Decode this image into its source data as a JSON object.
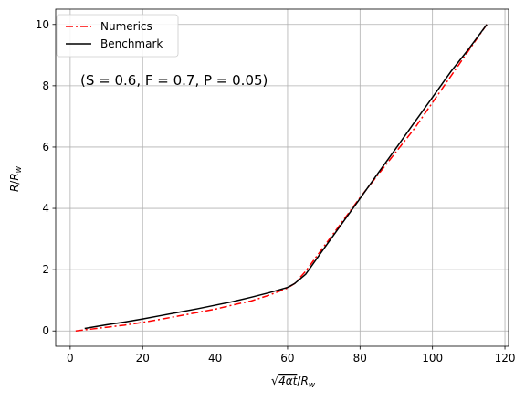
{
  "chart_data": {
    "type": "line",
    "annotation": "(S = 0.6, F = 0.7, P = 0.05)",
    "xlabel": "√4αt/R_w",
    "ylabel": "R/R_w",
    "xlim": [
      -4,
      121
    ],
    "ylim": [
      -0.5,
      10.5
    ],
    "xticks": [
      0,
      20,
      40,
      60,
      80,
      100,
      120
    ],
    "yticks": [
      0,
      2,
      4,
      6,
      8,
      10
    ],
    "grid": true,
    "legend_position": "upper-left",
    "series": [
      {
        "name": "Numerics",
        "color": "#ff0000",
        "dash": "dashdot",
        "x": [
          1.5,
          5,
          10,
          15,
          20,
          25,
          30,
          35,
          40,
          45,
          50,
          55,
          60,
          62,
          65,
          70,
          75,
          80,
          85,
          90,
          95,
          100,
          105,
          110,
          115
        ],
        "y": [
          0.0,
          0.05,
          0.12,
          0.19,
          0.28,
          0.38,
          0.49,
          0.6,
          0.71,
          0.85,
          0.98,
          1.17,
          1.4,
          1.55,
          1.95,
          2.75,
          3.55,
          4.35,
          5.1,
          5.85,
          6.6,
          7.45,
          8.3,
          9.15,
          10.0
        ]
      },
      {
        "name": "Benchmark",
        "color": "#000000",
        "dash": "solid",
        "x": [
          4,
          10,
          15,
          20,
          25,
          30,
          35,
          40,
          45,
          50,
          55,
          60,
          62,
          65,
          70,
          75,
          80,
          85,
          90,
          95,
          100,
          105,
          110,
          115
        ],
        "y": [
          0.08,
          0.2,
          0.29,
          0.39,
          0.5,
          0.61,
          0.72,
          0.84,
          0.96,
          1.1,
          1.25,
          1.42,
          1.55,
          1.85,
          2.68,
          3.5,
          4.32,
          5.15,
          5.97,
          6.8,
          7.62,
          8.45,
          9.2,
          10.0
        ]
      }
    ]
  }
}
